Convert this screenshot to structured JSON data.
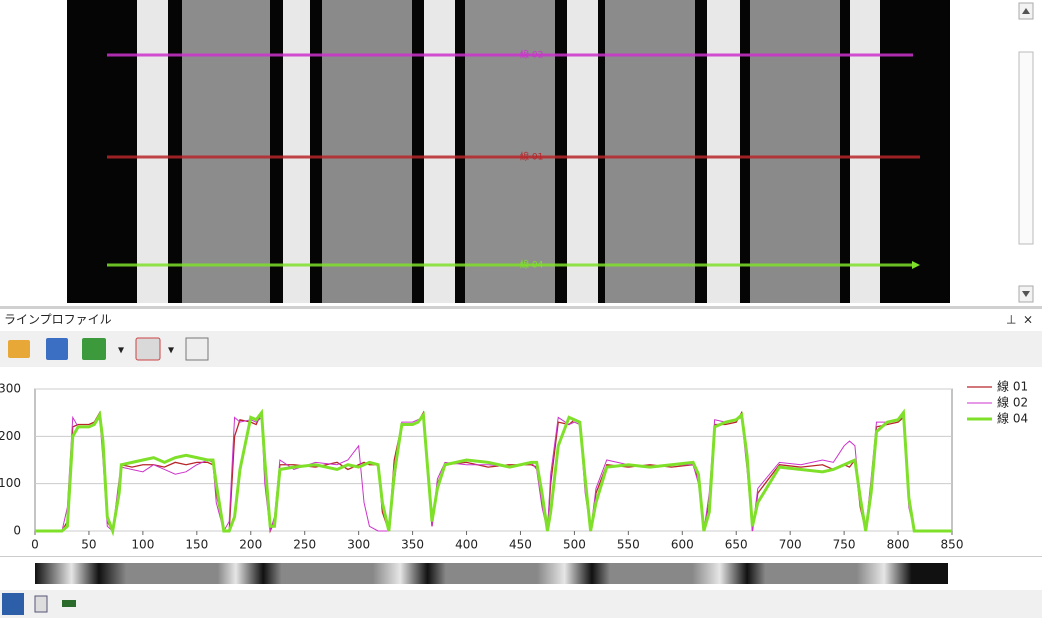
{
  "panel_title": "ラインプロファイル",
  "chart_data": {
    "type": "line",
    "x": [
      0,
      25,
      30,
      35,
      40,
      50,
      55,
      60,
      63,
      67,
      72,
      78,
      80,
      90,
      100,
      110,
      120,
      130,
      140,
      150,
      160,
      165,
      168,
      175,
      180,
      185,
      190,
      200,
      205,
      210,
      213,
      218,
      222,
      227,
      240,
      260,
      280,
      290,
      300,
      305,
      310,
      318,
      322,
      328,
      333,
      340,
      350,
      355,
      360,
      363,
      368,
      373,
      380,
      400,
      420,
      440,
      460,
      465,
      470,
      475,
      478,
      485,
      495,
      500,
      505,
      510,
      515,
      520,
      530,
      550,
      570,
      590,
      610,
      615,
      620,
      625,
      630,
      640,
      650,
      655,
      660,
      665,
      670,
      690,
      710,
      730,
      740,
      750,
      755,
      760,
      765,
      770,
      775,
      780,
      790,
      800,
      805,
      810,
      815,
      850
    ],
    "series": [
      {
        "name": "線 01",
        "color": "#b8262a",
        "width": 1.3,
        "values": [
          0,
          0,
          20,
          220,
          225,
          225,
          230,
          250,
          180,
          20,
          0,
          100,
          140,
          135,
          140,
          140,
          135,
          145,
          140,
          145,
          145,
          140,
          80,
          0,
          0,
          200,
          235,
          230,
          225,
          250,
          120,
          0,
          20,
          140,
          140,
          135,
          145,
          130,
          140,
          145,
          140,
          140,
          40,
          0,
          150,
          225,
          225,
          230,
          250,
          150,
          10,
          100,
          140,
          145,
          135,
          140,
          140,
          135,
          60,
          0,
          100,
          230,
          225,
          235,
          230,
          90,
          0,
          80,
          140,
          135,
          140,
          135,
          140,
          110,
          0,
          60,
          225,
          225,
          230,
          250,
          150,
          0,
          80,
          140,
          135,
          140,
          130,
          140,
          135,
          150,
          50,
          0,
          100,
          220,
          225,
          230,
          240,
          60,
          0,
          0
        ]
      },
      {
        "name": "線 02",
        "color": "#cc33cc",
        "width": 1,
        "values": [
          0,
          0,
          50,
          240,
          220,
          220,
          225,
          240,
          150,
          10,
          0,
          110,
          135,
          130,
          125,
          140,
          130,
          120,
          125,
          140,
          150,
          145,
          60,
          0,
          20,
          240,
          230,
          235,
          230,
          240,
          100,
          0,
          30,
          150,
          130,
          145,
          140,
          150,
          180,
          60,
          10,
          0,
          0,
          0,
          100,
          230,
          230,
          235,
          240,
          140,
          10,
          110,
          145,
          140,
          140,
          135,
          145,
          130,
          50,
          0,
          120,
          240,
          225,
          230,
          225,
          80,
          0,
          90,
          150,
          140,
          135,
          140,
          140,
          100,
          0,
          80,
          235,
          230,
          235,
          240,
          130,
          0,
          90,
          145,
          140,
          150,
          145,
          180,
          190,
          180,
          60,
          0,
          110,
          230,
          230,
          235,
          240,
          50,
          0,
          0
        ]
      },
      {
        "name": "線 04",
        "color": "#7fe02a",
        "width": 3,
        "values": [
          0,
          0,
          10,
          200,
          220,
          220,
          225,
          245,
          190,
          30,
          0,
          80,
          140,
          145,
          150,
          155,
          145,
          155,
          160,
          155,
          150,
          150,
          100,
          0,
          0,
          30,
          130,
          240,
          235,
          250,
          150,
          10,
          10,
          130,
          135,
          140,
          130,
          140,
          135,
          140,
          145,
          140,
          60,
          0,
          120,
          225,
          225,
          230,
          245,
          160,
          20,
          90,
          140,
          150,
          145,
          135,
          145,
          145,
          80,
          0,
          40,
          180,
          240,
          235,
          230,
          110,
          0,
          60,
          135,
          140,
          135,
          140,
          145,
          120,
          0,
          40,
          220,
          230,
          235,
          245,
          160,
          10,
          60,
          135,
          130,
          125,
          130,
          140,
          145,
          150,
          70,
          0,
          80,
          210,
          230,
          235,
          250,
          70,
          0,
          0
        ]
      }
    ],
    "xlim": [
      0,
      850
    ],
    "xticks": [
      0,
      50,
      100,
      150,
      200,
      250,
      300,
      350,
      400,
      450,
      500,
      550,
      600,
      650,
      700,
      750,
      800,
      850
    ],
    "ylim": [
      0,
      300
    ],
    "yticks": [
      0,
      100,
      200,
      300
    ],
    "grid": true,
    "legend": "right"
  }
}
